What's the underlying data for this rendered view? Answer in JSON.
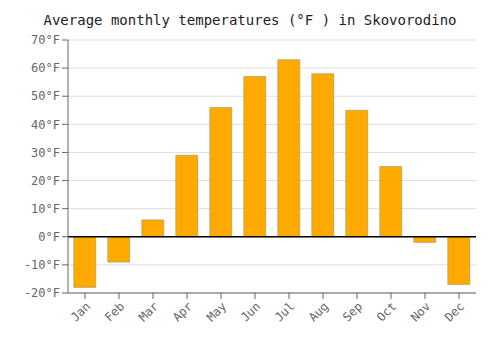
{
  "chart_data": {
    "type": "bar",
    "title": "Average monthly temperatures (°F ) in Skovorodino",
    "categories": [
      "Jan",
      "Feb",
      "Mar",
      "Apr",
      "May",
      "Jun",
      "Jul",
      "Aug",
      "Sep",
      "Oct",
      "Nov",
      "Dec"
    ],
    "values": [
      -18,
      -9,
      6,
      29,
      46,
      57,
      63,
      58,
      45,
      25,
      -2,
      -17
    ],
    "color": "#FFAA00",
    "ylim": [
      -20,
      70
    ],
    "yticks": [
      {
        "value": -20,
        "label": "-20°F"
      },
      {
        "value": -10,
        "label": "-10°F"
      },
      {
        "value": 0,
        "label": "0°F"
      },
      {
        "value": 10,
        "label": "10°F"
      },
      {
        "value": 20,
        "label": "20°F"
      },
      {
        "value": 30,
        "label": "30°F"
      },
      {
        "value": 40,
        "label": "40°F"
      },
      {
        "value": 50,
        "label": "50°F"
      },
      {
        "value": 60,
        "label": "60°F"
      },
      {
        "value": 70,
        "label": "70°F"
      }
    ],
    "grid": true
  }
}
